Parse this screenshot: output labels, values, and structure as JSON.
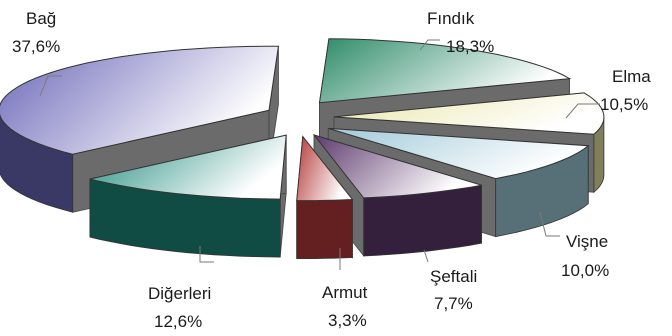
{
  "chart_data": {
    "type": "pie",
    "title": "",
    "style": "exploded-3d",
    "slices": [
      {
        "label": "Fındık",
        "value": 18.3,
        "value_label": "18,3%",
        "color": "#2e8b6a"
      },
      {
        "label": "Elma",
        "value": 10.5,
        "value_label": "10,5%",
        "color": "#e9e6a8"
      },
      {
        "label": "Vişne",
        "value": 10.0,
        "value_label": "10,0%",
        "color": "#9fc9d8"
      },
      {
        "label": "Şeftali",
        "value": 7.7,
        "value_label": "7,7%",
        "color": "#5e3a6e"
      },
      {
        "label": "Armut",
        "value": 3.3,
        "value_label": "3,3%",
        "color": "#b53a3a"
      },
      {
        "label": "Diğerleri",
        "value": 12.6,
        "value_label": "12,6%",
        "color": "#1f8a7c"
      },
      {
        "label": "Bağ",
        "value": 37.6,
        "value_label": "37,6%",
        "color": "#6a66b8"
      }
    ]
  }
}
